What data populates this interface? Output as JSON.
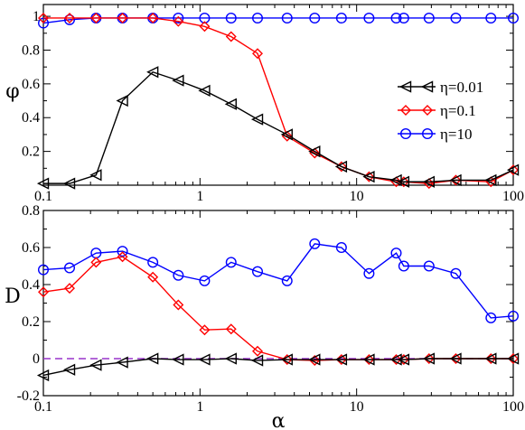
{
  "chart_data": [
    {
      "type": "line",
      "xscale": "log",
      "xlim": [
        0.1,
        100
      ],
      "ylim": [
        0,
        1.07
      ],
      "ylabel": "φ",
      "x_ticklabels": [
        "0.1",
        "1",
        "10",
        "100"
      ],
      "y_ticks": [
        0.2,
        0.4,
        0.6,
        0.8,
        1
      ],
      "y_ticklabels": [
        "0.2",
        "0.4",
        "0.6",
        "0.8",
        "1"
      ],
      "legend_position": "center-right",
      "series": [
        {
          "name": "η=0.01",
          "color": "#000000",
          "marker": "triangle-left",
          "x": [
            0.1,
            0.147,
            0.217,
            0.32,
            0.5,
            0.727,
            1.07,
            1.58,
            2.33,
            3.6,
            5.4,
            8.0,
            12.0,
            17.9,
            20.0,
            29.0,
            43.0,
            72.0,
            100.0
          ],
          "y": [
            0.01,
            0.01,
            0.06,
            0.5,
            0.67,
            0.62,
            0.56,
            0.48,
            0.39,
            0.3,
            0.2,
            0.11,
            0.05,
            0.03,
            0.02,
            0.02,
            0.03,
            0.03,
            0.09
          ]
        },
        {
          "name": "η=0.1",
          "color": "#ff0000",
          "marker": "diamond",
          "x": [
            0.1,
            0.147,
            0.217,
            0.32,
            0.5,
            0.727,
            1.07,
            1.58,
            2.33,
            3.6,
            5.4,
            8.0,
            12.0,
            17.9,
            20.0,
            29.0,
            43.0,
            72.0,
            100.0
          ],
          "y": [
            0.99,
            0.99,
            0.99,
            0.99,
            0.99,
            0.97,
            0.94,
            0.88,
            0.78,
            0.29,
            0.19,
            0.11,
            0.05,
            0.02,
            0.02,
            0.01,
            0.03,
            0.02,
            0.09
          ]
        },
        {
          "name": "η=10",
          "color": "#0000ff",
          "marker": "circle",
          "x": [
            0.1,
            0.147,
            0.217,
            0.32,
            0.5,
            0.727,
            1.07,
            1.58,
            2.33,
            3.6,
            5.4,
            8.0,
            12.0,
            17.9,
            20.0,
            29.0,
            43.0,
            72.0,
            100.0
          ],
          "y": [
            0.96,
            0.98,
            0.99,
            0.99,
            0.99,
            0.99,
            0.99,
            0.99,
            0.99,
            0.99,
            0.99,
            0.99,
            0.99,
            0.99,
            0.99,
            0.99,
            0.99,
            0.99,
            0.99
          ]
        }
      ]
    },
    {
      "type": "line",
      "xscale": "log",
      "xlim": [
        0.1,
        100
      ],
      "ylim": [
        -0.2,
        0.8
      ],
      "xlabel": "α",
      "ylabel": "D",
      "x_ticklabels": [
        "0.1",
        "1",
        "10",
        "100"
      ],
      "y_ticks": [
        -0.2,
        0,
        0.2,
        0.4,
        0.6,
        0.8
      ],
      "y_ticklabels": [
        "-0.2",
        "0",
        "0.2",
        "0.4",
        "0.6",
        "0.8"
      ],
      "reference_line": {
        "y": 0,
        "color": "#9933cc",
        "style": "dashed"
      },
      "series": [
        {
          "name": "η=0.01",
          "color": "#000000",
          "marker": "triangle-left",
          "x": [
            0.1,
            0.147,
            0.217,
            0.32,
            0.5,
            0.727,
            1.07,
            1.58,
            2.33,
            3.6,
            5.4,
            8.0,
            12.0,
            17.9,
            20.0,
            29.0,
            43.0,
            72.0,
            100.0
          ],
          "y": [
            -0.09,
            -0.06,
            -0.035,
            -0.02,
            0.0,
            -0.005,
            -0.005,
            0.0,
            -0.01,
            -0.005,
            -0.005,
            -0.005,
            -0.005,
            -0.005,
            -0.005,
            0.0,
            0.0,
            0.0,
            0.0
          ]
        },
        {
          "name": "η=0.1",
          "color": "#ff0000",
          "marker": "diamond",
          "x": [
            0.1,
            0.147,
            0.217,
            0.32,
            0.5,
            0.727,
            1.07,
            1.58,
            2.33,
            3.6,
            5.4,
            8.0,
            12.0,
            17.9,
            20.0,
            29.0,
            43.0,
            72.0,
            100.0
          ],
          "y": [
            0.36,
            0.38,
            0.52,
            0.55,
            0.44,
            0.29,
            0.155,
            0.16,
            0.04,
            -0.005,
            -0.01,
            -0.005,
            -0.005,
            -0.005,
            -0.005,
            0.0,
            0.0,
            0.0,
            0.0
          ]
        },
        {
          "name": "η=10",
          "color": "#0000ff",
          "marker": "circle",
          "x": [
            0.1,
            0.147,
            0.217,
            0.32,
            0.5,
            0.727,
            1.07,
            1.58,
            2.33,
            3.6,
            5.4,
            8.0,
            12.0,
            17.9,
            20.0,
            29.0,
            43.0,
            72.0,
            100.0
          ],
          "y": [
            0.48,
            0.49,
            0.57,
            0.58,
            0.52,
            0.45,
            0.42,
            0.52,
            0.47,
            0.42,
            0.62,
            0.6,
            0.46,
            0.57,
            0.5,
            0.5,
            0.46,
            0.22,
            0.23
          ]
        }
      ]
    }
  ]
}
